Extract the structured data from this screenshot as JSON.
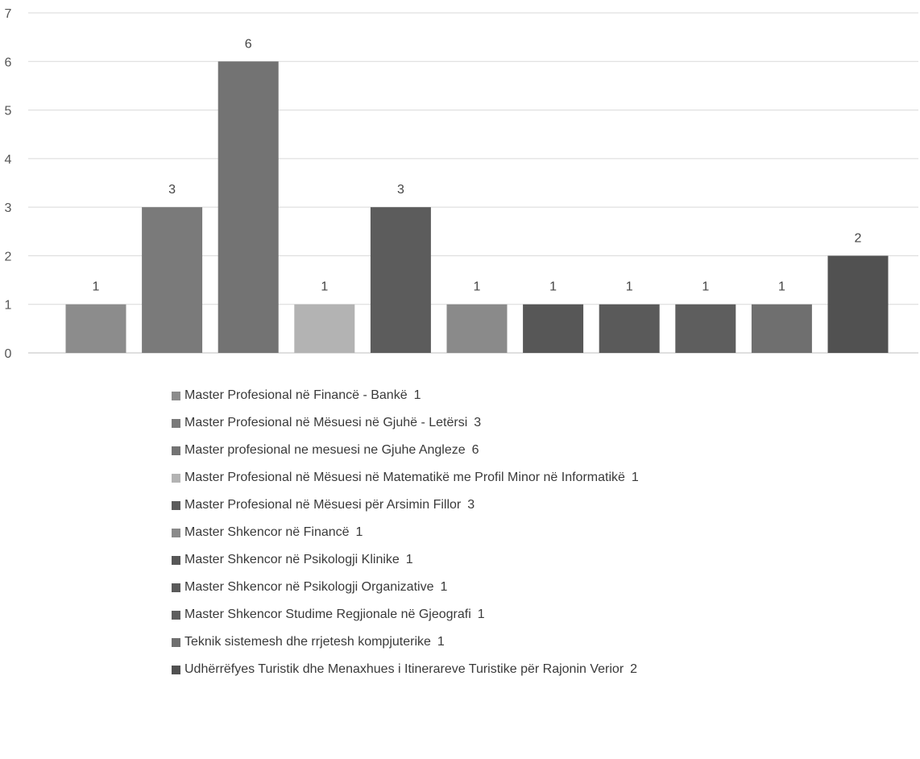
{
  "chart_data": {
    "type": "bar",
    "title": "",
    "xlabel": "",
    "ylabel": "",
    "ylim": [
      0,
      7
    ],
    "yticks": [
      0,
      1,
      2,
      3,
      4,
      5,
      6,
      7
    ],
    "grid": true,
    "legend_position": "bottom",
    "categories": [
      "Master Profesional në Financë - Bankë",
      "Master Profesional në Mësuesi në Gjuhë - Letërsi",
      "Master profesional ne mesuesi ne Gjuhe Angleze",
      "Master Profesional në Mësuesi në Matematikë me Profil Minor në Informatikë",
      "Master Profesional në Mësuesi për Arsimin Fillor",
      "Master Shkencor në Financë",
      "Master Shkencor në Psikologji Klinike",
      "Master Shkencor në Psikologji Organizative",
      "Master Shkencor Studime Regjionale në Gjeografi",
      "Teknik sistemesh dhe rrjetesh kompjuterike",
      "Udhërrëfyes Turistik dhe Menaxhues i Itinerareve Turistike për Rajonin Verior"
    ],
    "values": [
      1,
      3,
      6,
      1,
      3,
      1,
      1,
      1,
      1,
      1,
      2
    ],
    "colors": [
      "#8c8c8c",
      "#7a7a7a",
      "#737373",
      "#b3b3b3",
      "#5c5c5c",
      "#8a8a8a",
      "#575757",
      "#5a5a5a",
      "#5e5e5e",
      "#6f6f6f",
      "#515151"
    ]
  }
}
